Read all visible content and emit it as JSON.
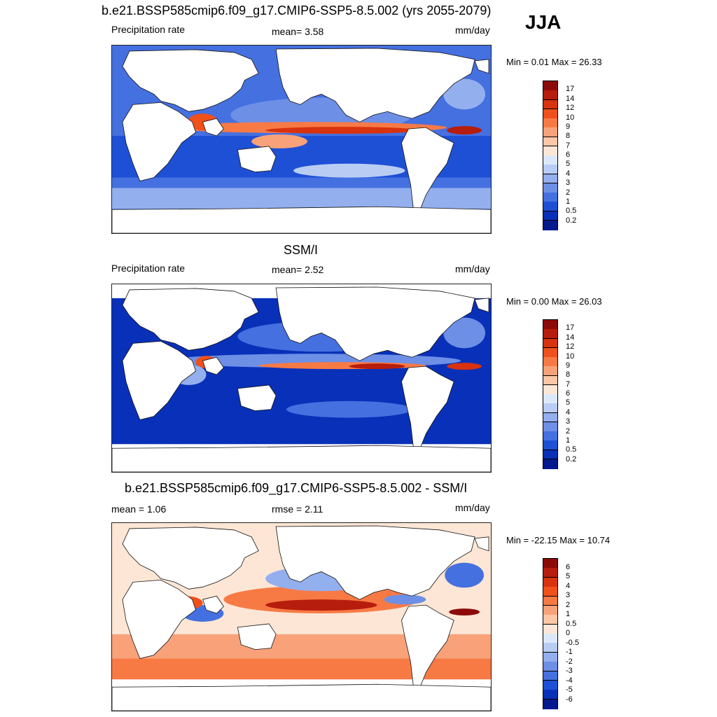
{
  "season": "JJA",
  "chart_data": [
    {
      "type": "heatmap",
      "title": "b.e21.BSSP585cmip6.f09_g17.CMIP6-SSP5-8.5.002 (yrs 2055-2079)",
      "left_label": "Precipitation rate",
      "stat_text": "mean=   3.58",
      "units": "mm/day",
      "minmax": "Min =   0.01 Max =  26.33",
      "mean": 3.58,
      "min": 0.01,
      "max": 26.33,
      "colorbar": {
        "levels": [
          "17",
          "14",
          "12",
          "10",
          "9",
          "8",
          "7",
          "6",
          "5",
          "4",
          "3",
          "2",
          "1",
          "0.5",
          "0.2"
        ],
        "colors": [
          "#8c0a0a",
          "#b71d0c",
          "#d8320e",
          "#f0501a",
          "#f77a45",
          "#f9a27a",
          "#fcc6a8",
          "#fde6d5",
          "#dce8fa",
          "#b9cdf4",
          "#93afee",
          "#6d8fe6",
          "#4570e0",
          "#1e50d6",
          "#0930b8",
          "#041a8c"
        ]
      }
    },
    {
      "type": "heatmap",
      "title": "SSM/I",
      "left_label": "Precipitation rate",
      "stat_text": "mean=   2.52",
      "units": "mm/day",
      "minmax": "Min =   0.00 Max =  26.03",
      "mean": 2.52,
      "min": 0.0,
      "max": 26.03,
      "colorbar": {
        "levels": [
          "17",
          "14",
          "12",
          "10",
          "9",
          "8",
          "7",
          "6",
          "5",
          "4",
          "3",
          "2",
          "1",
          "0.5",
          "0.2"
        ],
        "colors": [
          "#8c0a0a",
          "#b71d0c",
          "#d8320e",
          "#f0501a",
          "#f77a45",
          "#f9a27a",
          "#fcc6a8",
          "#fde6d5",
          "#dce8fa",
          "#b9cdf4",
          "#93afee",
          "#6d8fe6",
          "#4570e0",
          "#1e50d6",
          "#0930b8",
          "#041a8c"
        ]
      }
    },
    {
      "type": "heatmap",
      "title": "b.e21.BSSP585cmip6.f09_g17.CMIP6-SSP5-8.5.002 - SSM/I",
      "left_label": "mean =   1.06",
      "stat_text": "rmse =   2.11",
      "units": "mm/day",
      "minmax": "Min = -22.15 Max =  10.74",
      "mean": 1.06,
      "rmse": 2.11,
      "min": -22.15,
      "max": 10.74,
      "colorbar": {
        "levels": [
          "6",
          "5",
          "4",
          "3",
          "2",
          "1",
          "0.5",
          "0",
          "-0.5",
          "-1",
          "-2",
          "-3",
          "-4",
          "-5",
          "-6"
        ],
        "colors": [
          "#8c0a0a",
          "#b71d0c",
          "#d8320e",
          "#f0501a",
          "#f77a45",
          "#f9a27a",
          "#fcc6a8",
          "#fde6d5",
          "#dce8fa",
          "#b9cdf4",
          "#93afee",
          "#6d8fe6",
          "#4570e0",
          "#1e50d6",
          "#0930b8",
          "#041a8c"
        ]
      }
    }
  ]
}
